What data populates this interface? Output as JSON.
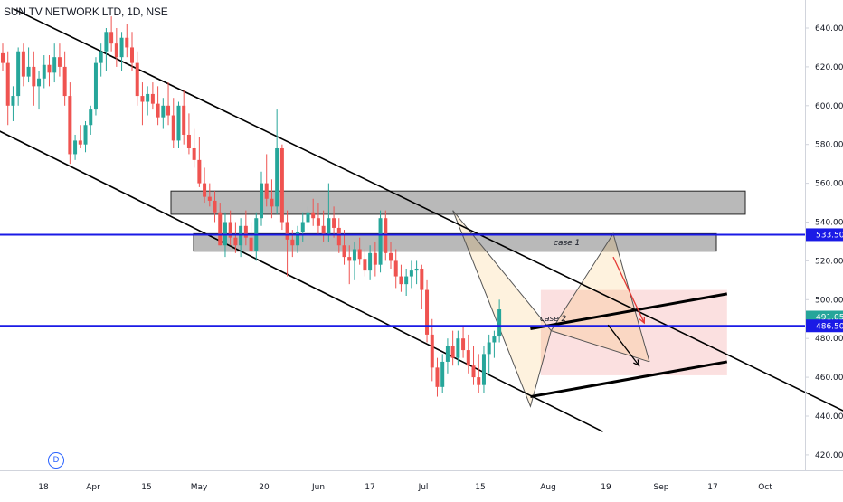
{
  "header": {
    "title": "SUN TV NETWORK LTD, 1D, NSE"
  },
  "badge": {
    "text": "D"
  },
  "colors": {
    "up": "#26a69a",
    "down": "#ef5350",
    "level": "#1a1ae6",
    "zone": "#808080",
    "current": "#26a69a"
  },
  "chart_data": {
    "type": "candlestick",
    "symbol": "SUN TV NETWORK LTD",
    "interval": "1D",
    "exchange": "NSE",
    "y_axis": {
      "ticks": [
        640,
        620,
        600,
        580,
        560,
        540,
        520,
        500,
        480,
        460,
        440,
        420
      ],
      "range": [
        410,
        650
      ],
      "position": "right"
    },
    "x_axis": {
      "labels": [
        "18",
        "Apr",
        "15",
        "May",
        "20",
        "Jun",
        "17",
        "Jul",
        "15",
        "Aug",
        "19",
        "Sep",
        "17",
        "Oct"
      ]
    },
    "price_lines": [
      {
        "label": "533.50",
        "value": 533.5
      },
      {
        "label": "491.05",
        "value": 491.05,
        "style": "dotted"
      },
      {
        "label": "486.50",
        "value": 486.5
      }
    ],
    "zones": [
      {
        "low": 544,
        "high": 556
      },
      {
        "low": 525,
        "high": 534,
        "label": "case 1"
      }
    ],
    "annotations": [
      {
        "text": "case 1"
      },
      {
        "text": "case 2"
      }
    ],
    "candles": [
      [
        627,
        632,
        618,
        622
      ],
      [
        622,
        628,
        590,
        600
      ],
      [
        600,
        610,
        592,
        605
      ],
      [
        605,
        630,
        600,
        628
      ],
      [
        628,
        632,
        610,
        615
      ],
      [
        615,
        630,
        612,
        620
      ],
      [
        620,
        628,
        600,
        610
      ],
      [
        610,
        618,
        598,
        614
      ],
      [
        614,
        626,
        609,
        621
      ],
      [
        621,
        626,
        610,
        617
      ],
      [
        617,
        632,
        612,
        625
      ],
      [
        625,
        632,
        615,
        620
      ],
      [
        620,
        628,
        600,
        605
      ],
      [
        605,
        612,
        570,
        575
      ],
      [
        575,
        585,
        572,
        582
      ],
      [
        582,
        590,
        578,
        580
      ],
      [
        580,
        592,
        576,
        590
      ],
      [
        590,
        600,
        585,
        598
      ],
      [
        598,
        625,
        595,
        622
      ],
      [
        622,
        632,
        615,
        628
      ],
      [
        628,
        640,
        618,
        638
      ],
      [
        638,
        646,
        628,
        632
      ],
      [
        632,
        640,
        620,
        625
      ],
      [
        625,
        638,
        618,
        635
      ],
      [
        635,
        642,
        625,
        630
      ],
      [
        630,
        638,
        618,
        622
      ],
      [
        622,
        628,
        600,
        605
      ],
      [
        605,
        612,
        590,
        602
      ],
      [
        602,
        610,
        595,
        606
      ],
      [
        606,
        612,
        598,
        601
      ],
      [
        601,
        610,
        590,
        594
      ],
      [
        594,
        604,
        588,
        600
      ],
      [
        600,
        612,
        590,
        595
      ],
      [
        595,
        604,
        578,
        582
      ],
      [
        582,
        602,
        578,
        600
      ],
      [
        600,
        608,
        580,
        585
      ],
      [
        585,
        596,
        575,
        578
      ],
      [
        578,
        588,
        568,
        572
      ],
      [
        572,
        584,
        558,
        560
      ],
      [
        560,
        568,
        550,
        553
      ],
      [
        553,
        560,
        548,
        551
      ],
      [
        551,
        556,
        540,
        545
      ],
      [
        545,
        550,
        528,
        528
      ],
      [
        528,
        545,
        522,
        540
      ],
      [
        540,
        546,
        528,
        532
      ],
      [
        532,
        540,
        524,
        528
      ],
      [
        528,
        542,
        522,
        538
      ],
      [
        538,
        546,
        528,
        532
      ],
      [
        532,
        540,
        522,
        525
      ],
      [
        525,
        545,
        520,
        542
      ],
      [
        542,
        566,
        538,
        560
      ],
      [
        560,
        575,
        548,
        552
      ],
      [
        552,
        562,
        542,
        548
      ],
      [
        548,
        598,
        544,
        578
      ],
      [
        578,
        580,
        536,
        540
      ],
      [
        540,
        546,
        512,
        531
      ],
      [
        531,
        536,
        522,
        528
      ],
      [
        528,
        538,
        524,
        535
      ],
      [
        535,
        545,
        530,
        540
      ],
      [
        540,
        548,
        533,
        545
      ],
      [
        545,
        552,
        538,
        542
      ],
      [
        542,
        550,
        534,
        538
      ],
      [
        538,
        546,
        530,
        534
      ],
      [
        534,
        560,
        530,
        542
      ],
      [
        542,
        548,
        532,
        537
      ],
      [
        537,
        542,
        524,
        528
      ],
      [
        528,
        536,
        518,
        522
      ],
      [
        522,
        528,
        508,
        520
      ],
      [
        520,
        530,
        510,
        526
      ],
      [
        526,
        532,
        518,
        521
      ],
      [
        521,
        526,
        512,
        515
      ],
      [
        515,
        528,
        510,
        524
      ],
      [
        524,
        530,
        512,
        518
      ],
      [
        518,
        546,
        514,
        542
      ],
      [
        542,
        546,
        520,
        524
      ],
      [
        524,
        530,
        516,
        520
      ],
      [
        520,
        526,
        506,
        512
      ],
      [
        512,
        518,
        504,
        508
      ],
      [
        508,
        516,
        502,
        512
      ],
      [
        512,
        520,
        506,
        515
      ],
      [
        515,
        520,
        508,
        516
      ],
      [
        516,
        518,
        495,
        505
      ],
      [
        505,
        510,
        478,
        482
      ],
      [
        482,
        490,
        458,
        465
      ],
      [
        465,
        470,
        450,
        455
      ],
      [
        455,
        472,
        452,
        468
      ],
      [
        468,
        480,
        462,
        476
      ],
      [
        476,
        484,
        466,
        470
      ],
      [
        470,
        484,
        466,
        480
      ],
      [
        480,
        486,
        470,
        474
      ],
      [
        474,
        482,
        462,
        466
      ],
      [
        466,
        476,
        456,
        460
      ],
      [
        460,
        472,
        452,
        456
      ],
      [
        456,
        476,
        452,
        472
      ],
      [
        472,
        482,
        462,
        478
      ],
      [
        478,
        484,
        470,
        481
      ],
      [
        481,
        500,
        478,
        495
      ]
    ],
    "trend_channel": {
      "upper": [
        [
          2,
          650
        ],
        [
          170,
          433
        ]
      ],
      "lower": [
        [
          -12,
          602
        ],
        [
          116,
          432
        ]
      ]
    },
    "short_channel": {
      "upper": [
        [
          102,
          485
        ],
        [
          140,
          503
        ]
      ],
      "lower": [
        [
          102,
          450
        ],
        [
          140,
          468
        ]
      ]
    },
    "harmonic": {
      "points": [
        [
          87,
          546
        ],
        [
          102,
          445
        ],
        [
          106,
          484
        ],
        [
          118,
          534
        ],
        [
          125,
          468
        ]
      ],
      "fill_color": "#f5a623"
    },
    "projection_zone": {
      "x": [
        104,
        140
      ],
      "low": 461,
      "high": 505
    },
    "arrows": [
      {
        "from": [
          118,
          522
        ],
        "to": [
          124,
          488
        ],
        "color": "red"
      },
      {
        "from": [
          117,
          487
        ],
        "to": [
          123,
          466
        ],
        "color": "black"
      }
    ]
  }
}
